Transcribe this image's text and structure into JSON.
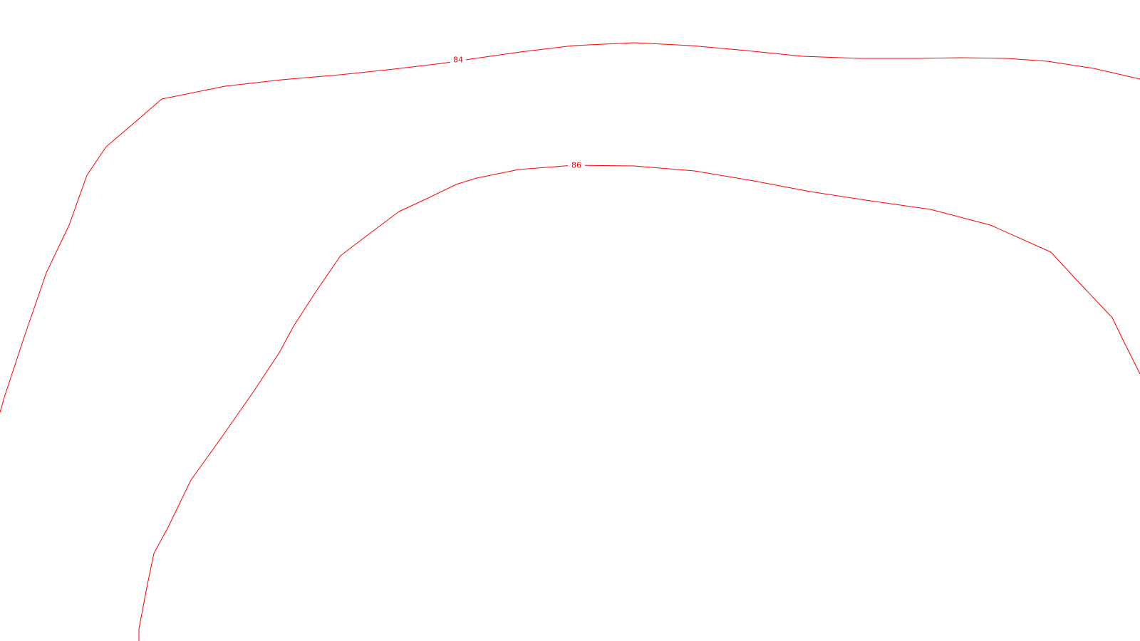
{
  "map": {
    "background_color": "#ffffff",
    "contour_color": "#ff0000",
    "contours": [
      {
        "id": "contour-84",
        "elevation_label": "84"
      },
      {
        "id": "contour-86",
        "elevation_label": "86"
      }
    ]
  }
}
